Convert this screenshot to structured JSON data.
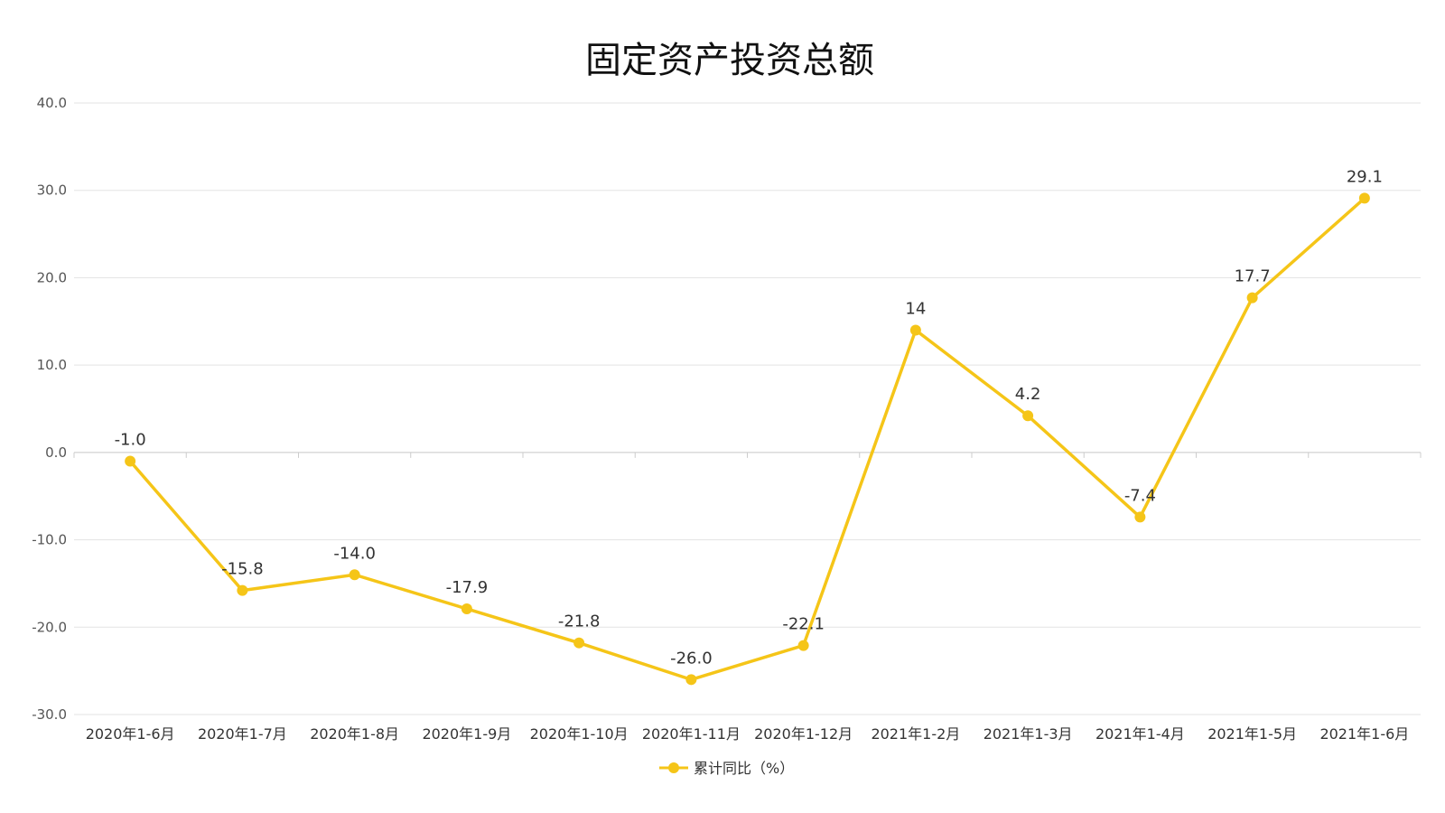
{
  "chart_data": {
    "type": "line",
    "title": "固定资产投资总额",
    "xlabel": "",
    "ylabel": "",
    "categories": [
      "2020年1-6月",
      "2020年1-7月",
      "2020年1-8月",
      "2020年1-9月",
      "2020年1-10月",
      "2020年1-11月",
      "2020年1-12月",
      "2021年1-2月",
      "2021年1-3月",
      "2021年1-4月",
      "2021年1-5月",
      "2021年1-6月"
    ],
    "series": [
      {
        "name": "累计同比（%）",
        "color": "#F5C518",
        "values": [
          -1.0,
          -15.8,
          -14.0,
          -17.9,
          -21.8,
          -26.0,
          -22.1,
          14,
          4.2,
          -7.4,
          17.7,
          29.1
        ],
        "labels": [
          "-1.0",
          "-15.8",
          "-14.0",
          "-17.9",
          "-21.8",
          "-26.0",
          "-22.1",
          "14",
          "4.2",
          "-7.4",
          "17.7",
          "29.1"
        ]
      }
    ],
    "ylim": [
      -30,
      40
    ],
    "yticks": [
      -30,
      -20,
      -10,
      0,
      10,
      20,
      30,
      40
    ],
    "ytick_labels": [
      "-30.0",
      "-20.0",
      "-10.0",
      "0.0",
      "10.0",
      "20.0",
      "30.0",
      "40.0"
    ],
    "grid": true,
    "legend_position": "bottom-center"
  }
}
